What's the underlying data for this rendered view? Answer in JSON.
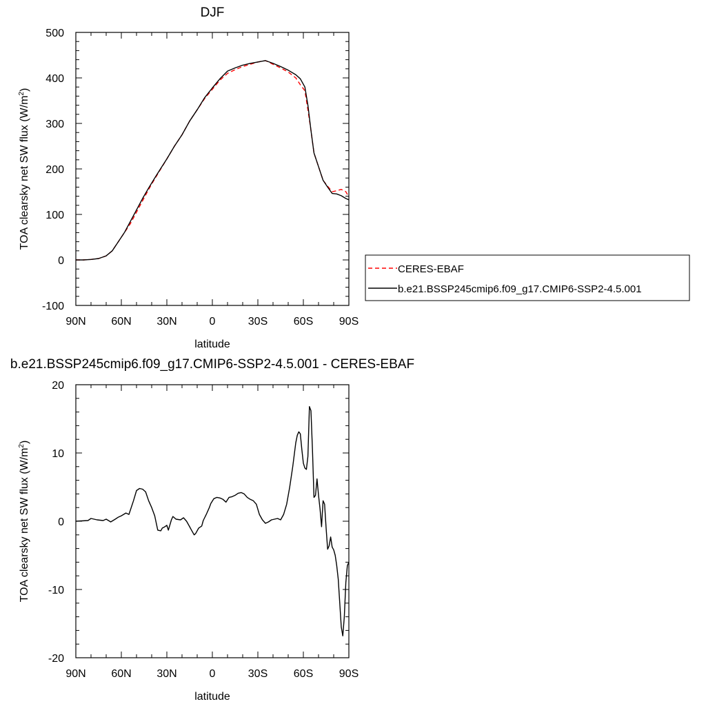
{
  "chart_data": [
    {
      "type": "line",
      "title": "DJF",
      "xlabel": "latitude",
      "ylabel": "TOA clearsky net SW flux (W/m²)",
      "ylabel_main": "TOA clearsky net SW flux (W/m",
      "ylabel_sup": "2",
      "ylabel_end": ")",
      "xlim": [
        90,
        -90
      ],
      "ylim": [
        -100,
        500
      ],
      "xticks": [
        {
          "v": 90,
          "label": "90N"
        },
        {
          "v": 60,
          "label": "60N"
        },
        {
          "v": 30,
          "label": "30N"
        },
        {
          "v": 0,
          "label": "0"
        },
        {
          "v": -30,
          "label": "30S"
        },
        {
          "v": -60,
          "label": "60S"
        },
        {
          "v": -90,
          "label": "90S"
        }
      ],
      "yticks": [
        {
          "v": 500,
          "label": "500"
        },
        {
          "v": 400,
          "label": "400"
        },
        {
          "v": 300,
          "label": "300"
        },
        {
          "v": 200,
          "label": "200"
        },
        {
          "v": 100,
          "label": "100"
        },
        {
          "v": 0,
          "label": "0"
        },
        {
          "v": -100,
          "label": "-100"
        }
      ],
      "legend": {
        "position": "right"
      },
      "series": [
        {
          "name": "CERES-EBAF",
          "color": "#ff0000",
          "dash": "dashed",
          "x": [
            90,
            85,
            80,
            75,
            70,
            66,
            62,
            58,
            54,
            50,
            46,
            42,
            38,
            34,
            30,
            25,
            20,
            15,
            10,
            5,
            0,
            -5,
            -10,
            -15,
            -20,
            -25,
            -30,
            -35,
            -40,
            -45,
            -50,
            -55,
            -58,
            -61,
            -63,
            -65,
            -67,
            -70,
            -73,
            -76,
            -79,
            -82,
            -85,
            -88,
            -90
          ],
          "y": [
            0,
            0,
            1,
            3,
            9,
            20,
            40,
            60,
            80,
            105,
            130,
            155,
            178,
            200,
            222,
            250,
            275,
            305,
            330,
            355,
            375,
            395,
            410,
            418,
            425,
            430,
            435,
            438,
            430,
            422,
            413,
            400,
            385,
            372,
            330,
            285,
            235,
            205,
            175,
            162,
            150,
            152,
            155,
            150,
            138
          ]
        },
        {
          "name": "b.e21.BSSP245cmip6.f09_g17.CMIP6-SSP2-4.5.001",
          "color": "#000000",
          "dash": "solid",
          "x": [
            90,
            85,
            80,
            75,
            70,
            66,
            62,
            58,
            54,
            50,
            46,
            42,
            38,
            34,
            30,
            25,
            20,
            15,
            10,
            5,
            0,
            -5,
            -10,
            -15,
            -20,
            -25,
            -30,
            -35,
            -40,
            -45,
            -50,
            -55,
            -58,
            -61,
            -63,
            -65,
            -67,
            -70,
            -73,
            -76,
            -79,
            -82,
            -85,
            -88,
            -90
          ],
          "y": [
            0,
            0,
            1,
            3,
            9,
            20,
            40,
            60,
            85,
            110,
            135,
            158,
            180,
            201,
            222,
            250,
            275,
            305,
            330,
            357,
            378,
            398,
            415,
            422,
            428,
            432,
            435,
            438,
            432,
            425,
            417,
            407,
            398,
            380,
            340,
            285,
            235,
            205,
            175,
            160,
            146,
            145,
            141,
            135,
            132
          ]
        }
      ]
    },
    {
      "type": "line",
      "title": "b.e21.BSSP245cmip6.f09_g17.CMIP6-SSP2-4.5.001 - CERES-EBAF",
      "xlabel": "latitude",
      "ylabel": "TOA clearsky net SW flux (W/m²)",
      "ylabel_main": "TOA clearsky net SW flux (W/m",
      "ylabel_sup": "2",
      "ylabel_end": ")",
      "xlim": [
        90,
        -90
      ],
      "ylim": [
        -20,
        20
      ],
      "xticks": [
        {
          "v": 90,
          "label": "90N"
        },
        {
          "v": 60,
          "label": "60N"
        },
        {
          "v": 30,
          "label": "30N"
        },
        {
          "v": 0,
          "label": "0"
        },
        {
          "v": -30,
          "label": "30S"
        },
        {
          "v": -60,
          "label": "60S"
        },
        {
          "v": -90,
          "label": "90S"
        }
      ],
      "yticks": [
        {
          "v": 20,
          "label": "20"
        },
        {
          "v": 10,
          "label": "10"
        },
        {
          "v": 0,
          "label": "0"
        },
        {
          "v": -10,
          "label": "-10"
        },
        {
          "v": -20,
          "label": "-20"
        }
      ],
      "series": [
        {
          "color": "#000000",
          "dash": "solid",
          "x": [
            90,
            82,
            80,
            76,
            72,
            70,
            67,
            64,
            62,
            60,
            57,
            55,
            52,
            50,
            48,
            46,
            44,
            42,
            40,
            38,
            36,
            34,
            33,
            32,
            30,
            29,
            27,
            26,
            24,
            21,
            19,
            17,
            15,
            14,
            12,
            11,
            9,
            7,
            6,
            4,
            2,
            1,
            -1,
            -3,
            -5,
            -7,
            -9,
            -11,
            -13,
            -15,
            -17,
            -19,
            -21,
            -23,
            -25,
            -27,
            -29,
            -31,
            -33,
            -35,
            -37,
            -39,
            -41,
            -43,
            -45,
            -47,
            -49,
            -51,
            -53,
            -55,
            -56,
            -57,
            -58,
            -59,
            -60,
            -61,
            -62,
            -63,
            -64,
            -65,
            -66,
            -67,
            -68,
            -69,
            -70,
            -71,
            -72,
            -73,
            -74,
            -75,
            -76,
            -77,
            -78,
            -79,
            -80,
            -81,
            -82,
            -83,
            -84,
            -85,
            -86,
            -87,
            -88,
            -89,
            -90
          ],
          "y": [
            0,
            0.1,
            0.4,
            0.2,
            0.1,
            0.3,
            -0.1,
            0.3,
            0.6,
            0.8,
            1.2,
            1.0,
            3.0,
            4.5,
            4.8,
            4.7,
            4.3,
            3.0,
            2.0,
            0.8,
            -1.3,
            -1.4,
            -1.0,
            -0.9,
            -0.6,
            -1.3,
            0.2,
            0.7,
            0.3,
            0.2,
            0.5,
            0.0,
            -0.8,
            -1.2,
            -2.0,
            -1.8,
            -1.0,
            -0.7,
            0.1,
            1.0,
            2.0,
            2.6,
            3.3,
            3.5,
            3.4,
            3.2,
            2.8,
            3.5,
            3.6,
            3.8,
            4.1,
            4.2,
            4.0,
            3.5,
            3.2,
            3.0,
            2.5,
            1.0,
            0.2,
            -0.3,
            -0.1,
            0.2,
            0.3,
            0.4,
            0.2,
            1.0,
            2.5,
            5.0,
            8.0,
            11.5,
            12.6,
            13.1,
            12.8,
            10.5,
            8.5,
            7.8,
            7.6,
            9.5,
            16.8,
            16.2,
            10.5,
            3.5,
            3.8,
            6.2,
            3.8,
            1.8,
            -0.8,
            3.0,
            2.5,
            -1.0,
            -4.1,
            -3.6,
            -2.3,
            -3.8,
            -4.2,
            -5.0,
            -6.5,
            -8.5,
            -12.0,
            -15.5,
            -16.8,
            -14.0,
            -9.0,
            -6.5,
            -6.0
          ]
        }
      ]
    }
  ]
}
